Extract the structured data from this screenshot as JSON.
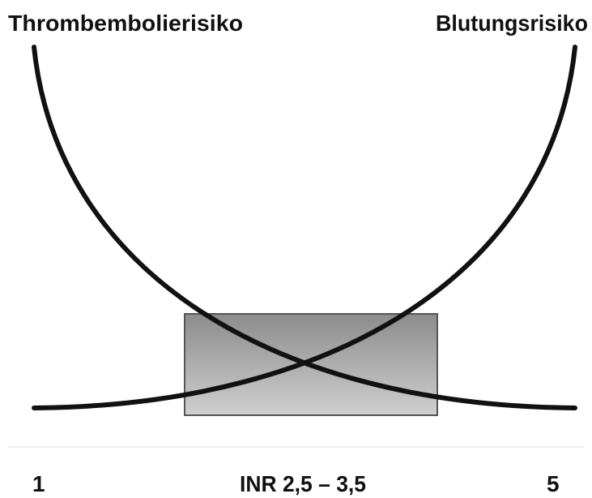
{
  "labels": {
    "left": "Thrombembolierisiko",
    "right": "Blutungsrisiko"
  },
  "axis": {
    "min": "1",
    "center": "INR 2,5 – 3,5",
    "max": "5"
  }
}
